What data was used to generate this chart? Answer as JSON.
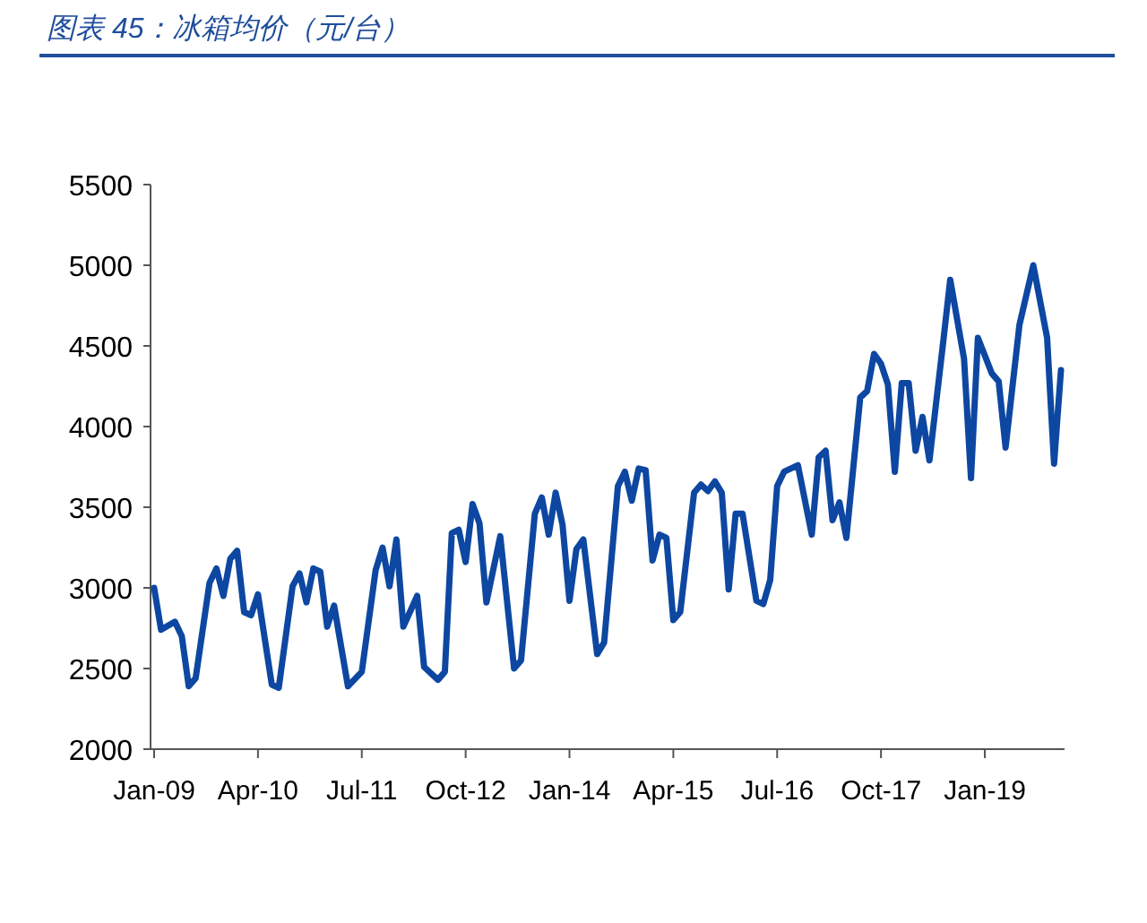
{
  "chart_data": {
    "type": "line",
    "title": "图表 45：冰箱均价（元/台）",
    "x": [
      "2009-01",
      "2009-02",
      "2009-04",
      "2009-05",
      "2009-06",
      "2009-07",
      "2009-09",
      "2009-10",
      "2009-11",
      "2009-12",
      "2010-01",
      "2010-02",
      "2010-03",
      "2010-04",
      "2010-06",
      "2010-07",
      "2010-09",
      "2010-10",
      "2010-11",
      "2010-12",
      "2011-01",
      "2011-02",
      "2011-03",
      "2011-05",
      "2011-07",
      "2011-09",
      "2011-10",
      "2011-11",
      "2011-12",
      "2012-01",
      "2012-03",
      "2012-04",
      "2012-06",
      "2012-07",
      "2012-08",
      "2012-09",
      "2012-10",
      "2012-11",
      "2012-12",
      "2013-01",
      "2013-03",
      "2013-05",
      "2013-06",
      "2013-08",
      "2013-09",
      "2013-10",
      "2013-11",
      "2013-12",
      "2014-01",
      "2014-02",
      "2014-03",
      "2014-05",
      "2014-06",
      "2014-08",
      "2014-09",
      "2014-10",
      "2014-11",
      "2014-12",
      "2015-01",
      "2015-02",
      "2015-03",
      "2015-04",
      "2015-05",
      "2015-07",
      "2015-08",
      "2015-09",
      "2015-10",
      "2015-11",
      "2015-12",
      "2016-01",
      "2016-02",
      "2016-04",
      "2016-05",
      "2016-06",
      "2016-07",
      "2016-08",
      "2016-10",
      "2016-12",
      "2017-01",
      "2017-02",
      "2017-03",
      "2017-04",
      "2017-05",
      "2017-07",
      "2017-08",
      "2017-09",
      "2017-10",
      "2017-11",
      "2017-12",
      "2018-01",
      "2018-02",
      "2018-03",
      "2018-04",
      "2018-05",
      "2018-07",
      "2018-08",
      "2018-10",
      "2018-11",
      "2018-12",
      "2019-02",
      "2019-03",
      "2019-04",
      "2019-06",
      "2019-08",
      "2019-10",
      "2019-11",
      "2019-12"
    ],
    "series": [
      {
        "color": "#0d47a1",
        "values": [
          3000,
          2740,
          2790,
          2700,
          2390,
          2440,
          3030,
          3120,
          2950,
          3180,
          3230,
          2850,
          2830,
          2960,
          2400,
          2380,
          3010,
          3090,
          2910,
          3120,
          3100,
          2760,
          2890,
          2390,
          2480,
          3110,
          3250,
          3010,
          3300,
          2760,
          2950,
          2510,
          2430,
          2480,
          3340,
          3360,
          3160,
          3520,
          3400,
          2910,
          3320,
          2500,
          2550,
          3460,
          3560,
          3330,
          3590,
          3390,
          2920,
          3240,
          3300,
          2590,
          2660,
          3630,
          3720,
          3540,
          3740,
          3730,
          3170,
          3330,
          3310,
          2800,
          2850,
          3590,
          3640,
          3600,
          3660,
          3590,
          2990,
          3460,
          3460,
          2920,
          2900,
          3050,
          3630,
          3720,
          3760,
          3330,
          3810,
          3850,
          3420,
          3530,
          3310,
          4180,
          4220,
          4450,
          4390,
          4260,
          3720,
          4270,
          4270,
          3850,
          4060,
          3790,
          4530,
          4910,
          4420,
          3680,
          4550,
          4330,
          4280,
          3870,
          4630,
          5000,
          4550,
          3770,
          4350
        ]
      }
    ],
    "xlim": [
      "2009-01",
      "2019-12"
    ],
    "xticks": [
      {
        "value": "2009-01",
        "label": "Jan-09"
      },
      {
        "value": "2010-04",
        "label": "Apr-10"
      },
      {
        "value": "2011-07",
        "label": "Jul-11"
      },
      {
        "value": "2012-10",
        "label": "Oct-12"
      },
      {
        "value": "2014-01",
        "label": "Jan-14"
      },
      {
        "value": "2015-04",
        "label": "Apr-15"
      },
      {
        "value": "2016-07",
        "label": "Jul-16"
      },
      {
        "value": "2017-10",
        "label": "Oct-17"
      },
      {
        "value": "2019-01",
        "label": "Jan-19"
      }
    ],
    "ylim": [
      2000,
      5500
    ],
    "yticks": [
      2000,
      2500,
      3000,
      3500,
      4000,
      4500,
      5000,
      5500
    ],
    "grid": false,
    "marker": "none",
    "line_style": "solid"
  }
}
